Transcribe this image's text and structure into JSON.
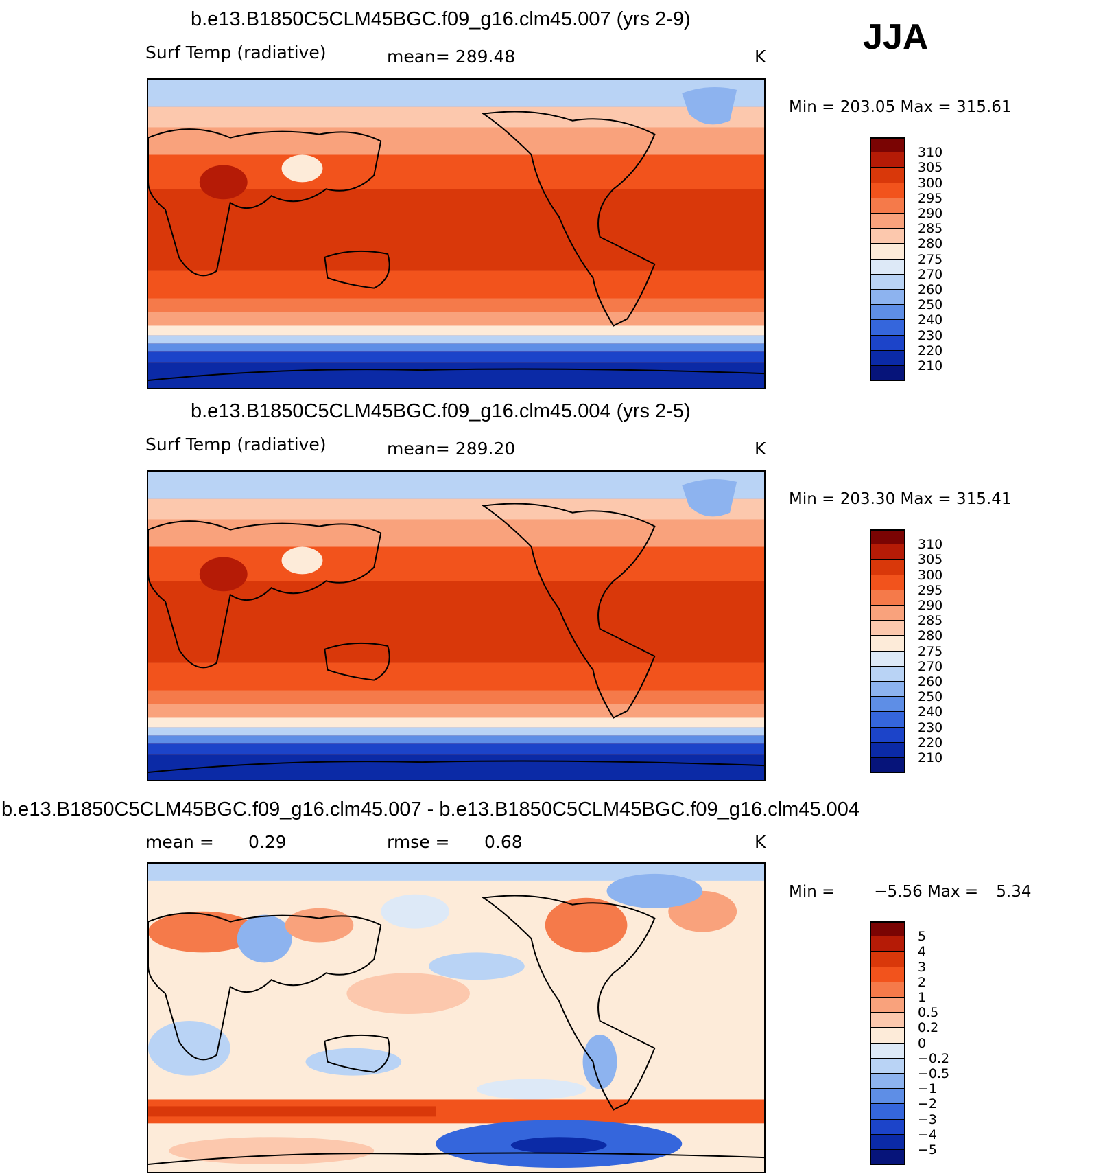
{
  "season": "JJA",
  "panels": [
    {
      "title": "b.e13.B1850C5CLM45BGC.f09_g16.clm45.007 (yrs 2-9)",
      "left_label": "Surf Temp (radiative)",
      "center_label": "mean= 289.48",
      "units": "K",
      "min_label": "Min",
      "min_value": "203.05",
      "max_label": "Max",
      "max_value": "315.61"
    },
    {
      "title": "b.e13.B1850C5CLM45BGC.f09_g16.clm45.004 (yrs 2-5)",
      "left_label": "Surf Temp (radiative)",
      "center_label": "mean= 289.20",
      "units": "K",
      "min_label": "Min",
      "min_value": "203.30",
      "max_label": "Max",
      "max_value": "315.41"
    },
    {
      "title": "b.e13.B1850C5CLM45BGC.f09_g16.clm45.007 - b.e13.B1850C5CLM45BGC.f09_g16.clm45.004",
      "left_label": "mean =",
      "left_value": "0.29",
      "center_label": "rmse =",
      "center_value": "0.68",
      "units": "K",
      "min_label": "Min",
      "min_value": "−5.56",
      "max_label": "Max",
      "max_value": "5.34"
    }
  ],
  "temp_colorbar": {
    "labels": [
      "310",
      "305",
      "300",
      "295",
      "290",
      "285",
      "280",
      "275",
      "270",
      "260",
      "250",
      "240",
      "230",
      "220",
      "210"
    ],
    "colors": [
      "#7a0403",
      "#b51b06",
      "#d9380a",
      "#f2531c",
      "#f57a4a",
      "#f9a27c",
      "#fcc8ad",
      "#fdebd9",
      "#dde9f7",
      "#b9d3f5",
      "#8db3ef",
      "#5e8ee6",
      "#3566dc",
      "#1c44c9",
      "#0b2aa6",
      "#06147a"
    ]
  },
  "diff_colorbar": {
    "labels": [
      "5",
      "4",
      "3",
      "2",
      "1",
      "0.5",
      "0.2",
      "0",
      "−0.2",
      "−0.5",
      "−1",
      "−2",
      "−3",
      "−4",
      "−5"
    ],
    "colors": [
      "#7a0403",
      "#b51b06",
      "#d9380a",
      "#f2531c",
      "#f57a4a",
      "#f9a27c",
      "#fcc8ad",
      "#fdebd9",
      "#dde9f7",
      "#b9d3f5",
      "#8db3ef",
      "#5e8ee6",
      "#3566dc",
      "#1c44c9",
      "#0b2aa6",
      "#06147a"
    ]
  }
}
